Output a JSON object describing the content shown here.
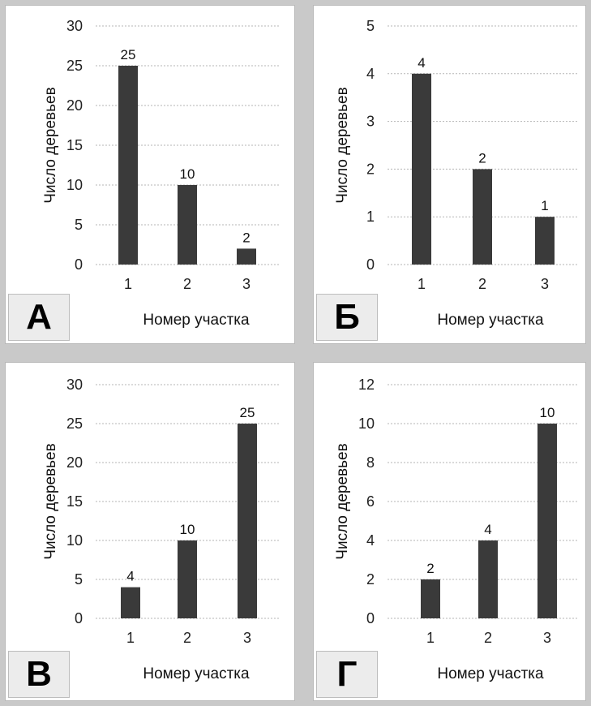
{
  "chart_data": [
    {
      "type": "bar",
      "panel_label": "А",
      "categories": [
        "1",
        "2",
        "3"
      ],
      "values": [
        25,
        10,
        2
      ],
      "xlabel": "Номер участка",
      "ylabel": "Число деревьев",
      "ylim": [
        0,
        30
      ],
      "yticks": [
        0,
        5,
        10,
        15,
        20,
        25,
        30
      ],
      "grid": true,
      "bar_color": "#3a3a3a"
    },
    {
      "type": "bar",
      "panel_label": "Б",
      "categories": [
        "1",
        "2",
        "3"
      ],
      "values": [
        4,
        2,
        1
      ],
      "xlabel": "Номер участка",
      "ylabel": "Число деревьев",
      "ylim": [
        0,
        5
      ],
      "yticks": [
        0,
        1,
        2,
        3,
        4,
        5
      ],
      "grid": true,
      "bar_color": "#3a3a3a"
    },
    {
      "type": "bar",
      "panel_label": "В",
      "categories": [
        "1",
        "2",
        "3"
      ],
      "values": [
        4,
        10,
        25
      ],
      "xlabel": "Номер участка",
      "ylabel": "Число деревьев",
      "ylim": [
        0,
        30
      ],
      "yticks": [
        0,
        5,
        10,
        15,
        20,
        25,
        30
      ],
      "grid": true,
      "bar_color": "#3a3a3a"
    },
    {
      "type": "bar",
      "panel_label": "Г",
      "categories": [
        "1",
        "2",
        "3"
      ],
      "values": [
        2,
        4,
        10
      ],
      "xlabel": "Номер участка",
      "ylabel": "Число деревьев",
      "ylim": [
        0,
        12
      ],
      "yticks": [
        0,
        2,
        4,
        6,
        8,
        10,
        12
      ],
      "grid": true,
      "bar_color": "#3a3a3a"
    }
  ]
}
